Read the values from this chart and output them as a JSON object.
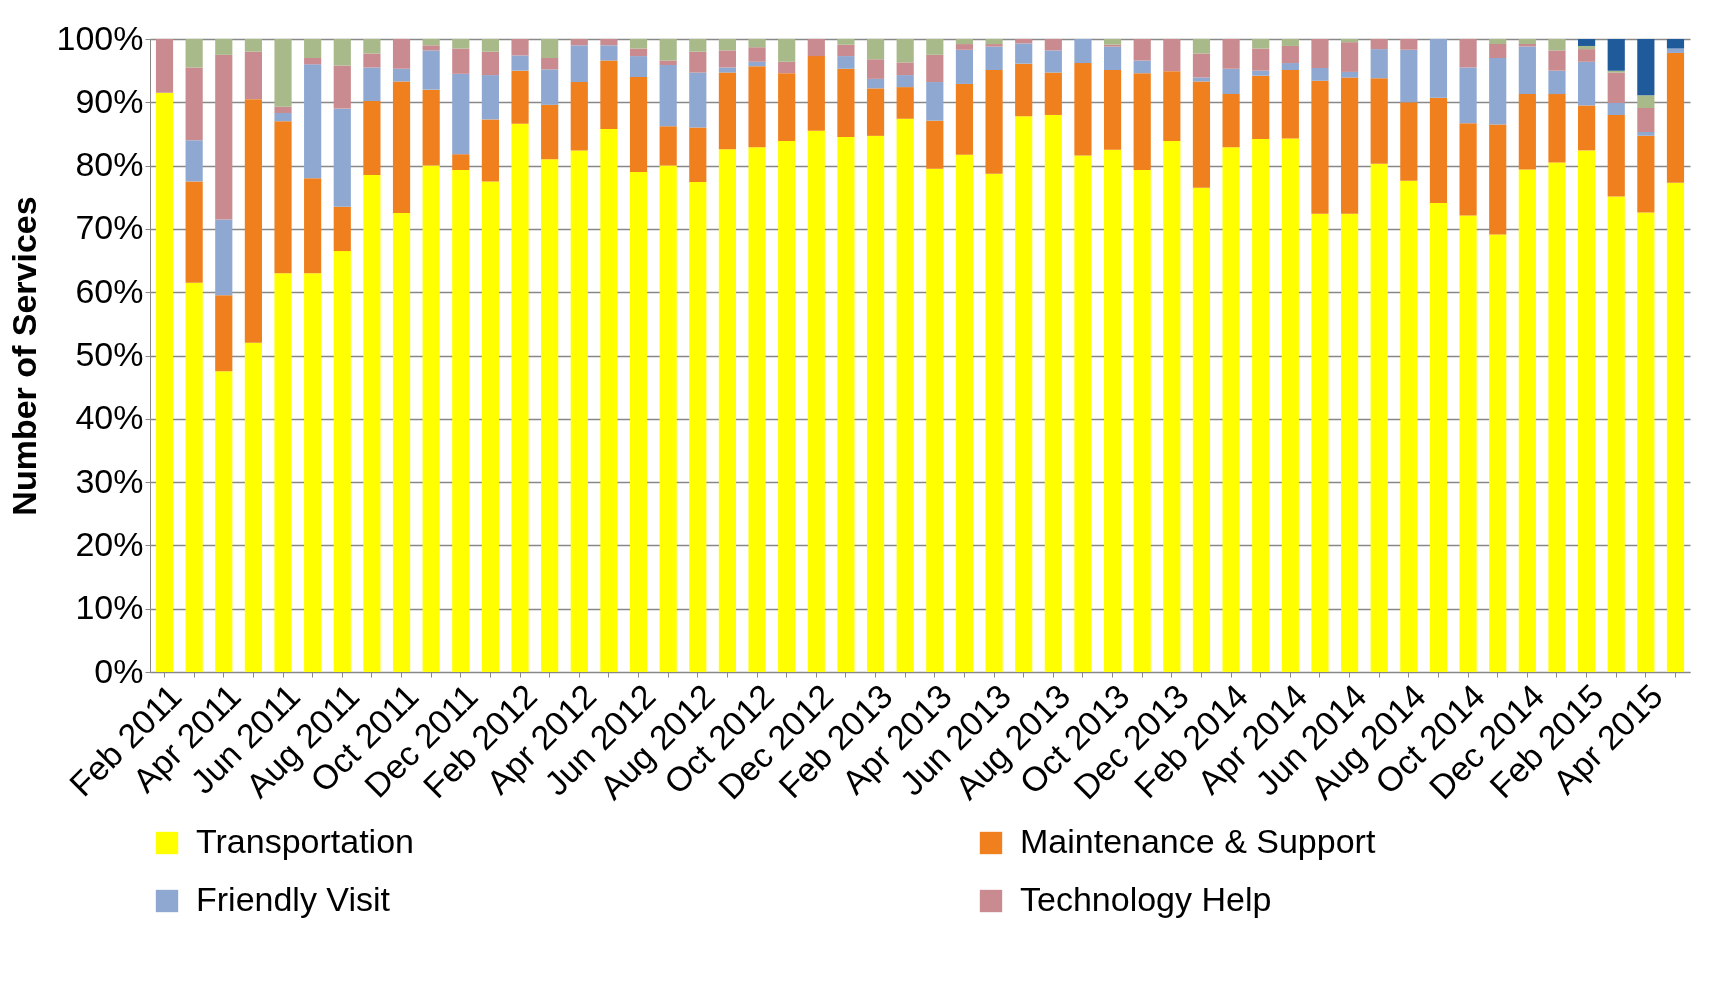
{
  "chart_data": {
    "type": "bar",
    "stacked": true,
    "ylabel": "Number of Services",
    "categories": [
      "Feb 2011",
      null,
      "Apr 2011",
      null,
      "Jun 2011",
      null,
      "Aug 2011",
      null,
      "Oct 2011",
      null,
      "Dec 2011",
      null,
      "Feb 2012",
      null,
      "Apr 2012",
      null,
      "Jun 2012",
      null,
      "Aug 2012",
      null,
      "Oct 2012",
      null,
      "Dec 2012",
      null,
      "Feb 2013",
      null,
      "Apr 2013",
      null,
      "Jun 2013",
      null,
      "Aug 2013",
      null,
      "Oct 2013",
      null,
      "Dec 2013",
      null,
      "Feb 2014",
      null,
      "Apr 2014",
      null,
      "Jun 2014",
      null,
      "Aug 2014",
      null,
      "Oct 2014",
      null,
      "Dec 2014",
      null,
      "Feb 2015",
      null,
      "Apr 2015",
      null
    ],
    "series": [
      {
        "name": "Transportation",
        "color": "#ffff00",
        "values": [
          91.5,
          61.5,
          47.5,
          52,
          63,
          63,
          66.5,
          78.5,
          72.5,
          80,
          79.3,
          77.5,
          86.6,
          81,
          82.4,
          85.8,
          79,
          80,
          77.4,
          82.6,
          82.9,
          83.9,
          85.5,
          84.5,
          84.7,
          87.4,
          79.5,
          81.7,
          78.7,
          87.8,
          88,
          81.6,
          82.5,
          79.3,
          83.9,
          76.5,
          82.9,
          84.2,
          84.3,
          72.4,
          72.4,
          80.3,
          77.6,
          74.1,
          72.1,
          69.1,
          79.4,
          80.5,
          82.4,
          75.1,
          72.6,
          77.3
        ]
      },
      {
        "name": "Maintenance & Support",
        "color": "#f07f1e",
        "values": [
          null,
          16,
          12,
          38.5,
          24,
          15,
          7,
          11.7,
          20.8,
          12,
          2.5,
          9.8,
          8.4,
          8.6,
          10.8,
          10.8,
          15,
          6.2,
          8.6,
          12.1,
          12.8,
          10.7,
          11.8,
          10.8,
          7.5,
          5,
          7.6,
          11.2,
          16.4,
          8.3,
          6.7,
          14.6,
          12.6,
          15.3,
          11,
          16.8,
          8.4,
          10,
          10.8,
          21,
          21.5,
          13.5,
          12.4,
          16.6,
          14.6,
          17.4,
          11.9,
          10.8,
          7.1,
          12.9,
          12.1,
          20.5
        ]
      },
      {
        "name": "Friendly Visit",
        "color": "#8ea8d2",
        "values": [
          null,
          6.5,
          12,
          null,
          1.3,
          18,
          15.5,
          5.3,
          2,
          6.2,
          12.7,
          7,
          2.4,
          5.6,
          5.8,
          2.4,
          3.3,
          9.7,
          8.7,
          0.8,
          0.7,
          null,
          null,
          2,
          1.5,
          1.9,
          6.1,
          5.4,
          3.7,
          3.2,
          3.5,
          3.8,
          3.7,
          2,
          null,
          0.6,
          4,
          0.8,
          1.1,
          2,
          0.9,
          4.6,
          8.3,
          9.3,
          8.8,
          10.5,
          7.5,
          3.7,
          6.9,
          1.9,
          0.6,
          0.7
        ]
      },
      {
        "name": "Technology Help",
        "color": "#c98b8f",
        "values": [
          8.5,
          11.5,
          26,
          7.5,
          1,
          1,
          6.8,
          2.2,
          4.7,
          0.8,
          4,
          3.7,
          2.6,
          1.8,
          1,
          1,
          1.2,
          0.7,
          3.3,
          2.7,
          2.3,
          1.8,
          2.7,
          1.8,
          3.1,
          2,
          4.3,
          0.9,
          0.4,
          0.7,
          1.8,
          null,
          0.3,
          3.4,
          5.1,
          3.8,
          4.7,
          3.5,
          2.7,
          4.6,
          4.7,
          1.6,
          1.7,
          null,
          4.5,
          2.2,
          0.4,
          3.2,
          2,
          4.8,
          3.8,
          null
        ]
      },
      {
        "color": "#a8ba8a",
        "values": [
          null,
          4.5,
          2.5,
          2,
          10.7,
          3,
          4.2,
          2.3,
          null,
          1,
          1.5,
          2,
          null,
          3,
          null,
          null,
          1.5,
          3.4,
          2,
          1.8,
          1.3,
          3.6,
          null,
          0.9,
          3.2,
          3.7,
          2.5,
          0.8,
          0.8,
          null,
          null,
          null,
          0.9,
          null,
          null,
          2.3,
          null,
          1.5,
          1.1,
          null,
          0.5,
          null,
          null,
          null,
          null,
          0.8,
          0.8,
          1.8,
          0.5,
          0.3,
          2,
          null
        ]
      },
      {
        "color": "#1f5a9a",
        "values": [
          null,
          null,
          null,
          null,
          null,
          null,
          null,
          null,
          null,
          null,
          null,
          null,
          null,
          null,
          null,
          null,
          null,
          null,
          null,
          null,
          null,
          null,
          null,
          null,
          null,
          null,
          null,
          null,
          null,
          null,
          null,
          null,
          null,
          null,
          null,
          null,
          null,
          null,
          null,
          null,
          null,
          null,
          null,
          null,
          null,
          null,
          null,
          null,
          1.1,
          5,
          8.9,
          1.5
        ]
      }
    ],
    "ylim": [
      0,
      100
    ],
    "yticks": [
      {
        "value": 0,
        "label": "0%"
      },
      {
        "value": 10,
        "label": "10%"
      },
      {
        "value": 20,
        "label": "20%"
      },
      {
        "value": 30,
        "label": "30%"
      },
      {
        "value": 40,
        "label": "40%"
      },
      {
        "value": 50,
        "label": "50%"
      },
      {
        "value": 60,
        "label": "60%"
      },
      {
        "value": 70,
        "label": "70%"
      },
      {
        "value": 80,
        "label": "80%"
      },
      {
        "value": 90,
        "label": "90%"
      },
      {
        "value": 100,
        "label": "100%"
      }
    ],
    "grid": "y",
    "legend": "bottom"
  }
}
